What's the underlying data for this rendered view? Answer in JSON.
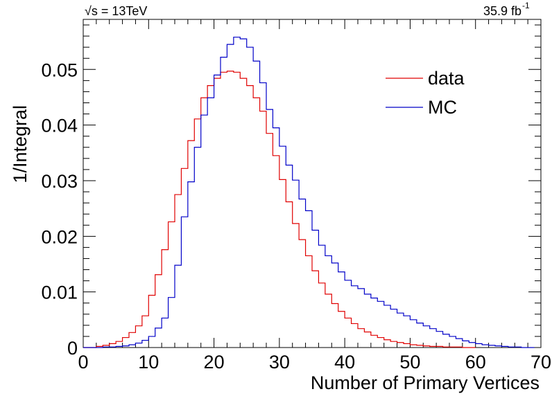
{
  "chart_data": {
    "type": "line",
    "style": "histogram-step",
    "header_left": "√s = 13TeV",
    "header_right": "35.9 fb",
    "header_right_sup": "-1",
    "xlabel": "Number of Primary Vertices",
    "ylabel": "1/Integral",
    "xlim": [
      0,
      70
    ],
    "ylim": [
      0,
      0.059
    ],
    "xticks": [
      "0",
      "10",
      "20",
      "30",
      "40",
      "50",
      "60",
      "70"
    ],
    "yticks": [
      "0",
      "0.01",
      "0.02",
      "0.03",
      "0.04",
      "0.05"
    ],
    "grid": false,
    "legend_position": "top-right",
    "bin_edges_start": 0,
    "bin_width": 1,
    "series": [
      {
        "name": "data",
        "color": "#e00000",
        "values": [
          0.0,
          0.0,
          0.0002,
          0.0004,
          0.0007,
          0.0011,
          0.0018,
          0.0027,
          0.0039,
          0.0057,
          0.0094,
          0.0131,
          0.0176,
          0.0226,
          0.0275,
          0.0322,
          0.0372,
          0.0411,
          0.0449,
          0.0471,
          0.0484,
          0.0495,
          0.0497,
          0.0495,
          0.0484,
          0.0471,
          0.0449,
          0.0425,
          0.0385,
          0.0345,
          0.0302,
          0.0262,
          0.0223,
          0.0194,
          0.0165,
          0.0138,
          0.0116,
          0.0096,
          0.0079,
          0.0065,
          0.0053,
          0.0043,
          0.0034,
          0.0028,
          0.0022,
          0.0018,
          0.0014,
          0.0011,
          0.0009,
          0.0007,
          0.0005,
          0.0004,
          0.0003,
          0.0002,
          0.0002,
          0.0001,
          0.0001,
          0.0001,
          0.0,
          0.0
        ]
      },
      {
        "name": "MC",
        "color": "#0000c8",
        "values": [
          0.0,
          0.0,
          0.0,
          0.0001,
          0.0001,
          0.0002,
          0.0003,
          0.0005,
          0.0008,
          0.0013,
          0.002,
          0.0035,
          0.0053,
          0.009,
          0.0148,
          0.0235,
          0.0298,
          0.036,
          0.0418,
          0.0449,
          0.049,
          0.0522,
          0.0545,
          0.0558,
          0.0555,
          0.054,
          0.0515,
          0.0476,
          0.0428,
          0.0395,
          0.0362,
          0.0328,
          0.0301,
          0.0267,
          0.0246,
          0.0211,
          0.0184,
          0.0165,
          0.0152,
          0.0136,
          0.0121,
          0.0111,
          0.0106,
          0.0096,
          0.0089,
          0.0083,
          0.0076,
          0.0069,
          0.0062,
          0.0057,
          0.005,
          0.0044,
          0.0039,
          0.0034,
          0.0029,
          0.0024,
          0.002,
          0.0016,
          0.0012,
          0.0009,
          0.0007,
          0.0005,
          0.0004,
          0.0003,
          0.0002,
          0.0001,
          0.0001,
          0.0,
          0.0
        ]
      }
    ]
  }
}
